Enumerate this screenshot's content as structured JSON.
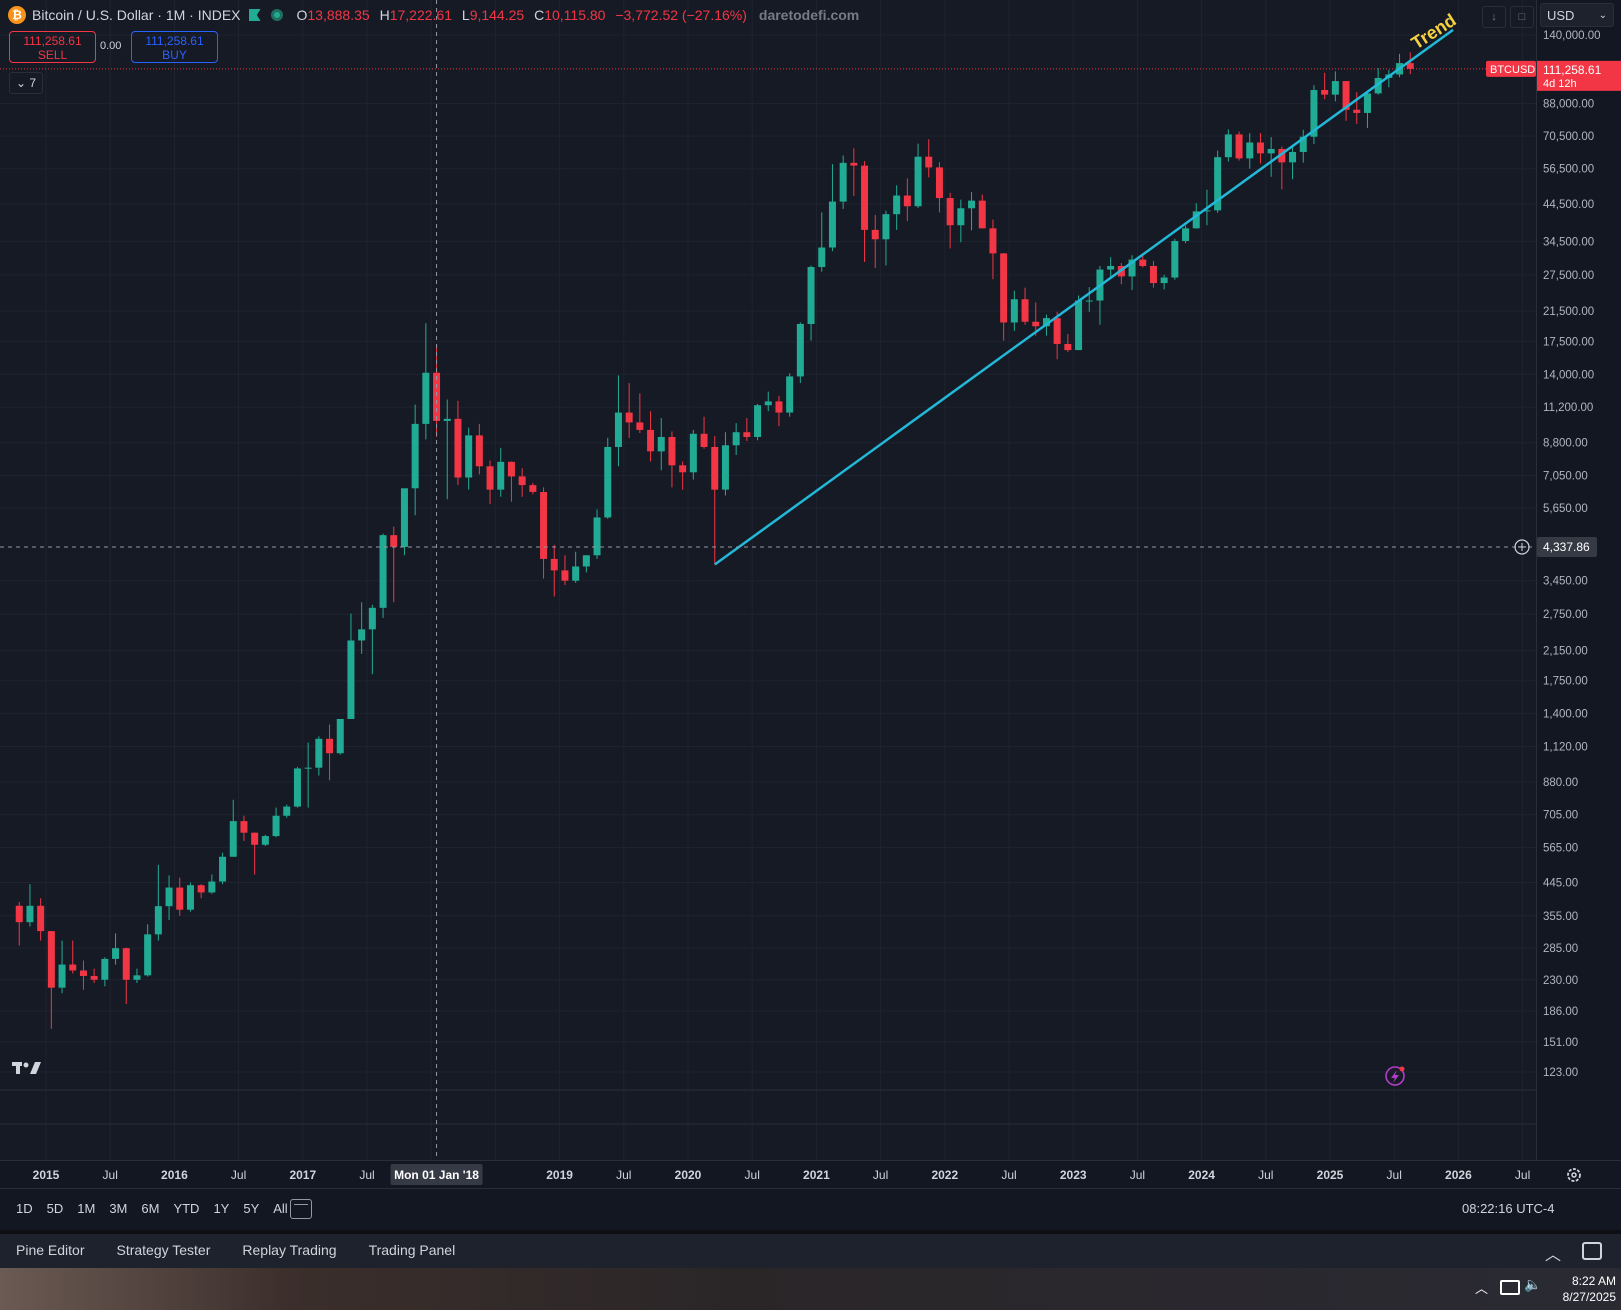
{
  "header": {
    "symbol": "Bitcoin / U.S. Dollar · 1M · INDEX",
    "ohlc": {
      "o_label": "O",
      "o": "13,888.35",
      "h_label": "H",
      "h": "17,222.61",
      "l_label": "L",
      "l": "9,144.25",
      "c_label": "C",
      "c": "10,115.80",
      "change": "−3,772.52 (−27.16%)"
    },
    "watermark": "daretodefi.com",
    "sell": {
      "price": "111,258.61",
      "label": "SELL"
    },
    "buy": {
      "price": "111,258.61",
      "label": "BUY"
    },
    "spread": "0.00",
    "indicators_collapsed": "⌄ 7",
    "currency": "USD"
  },
  "price_scale": {
    "labels": [
      "140,000.00",
      "88,000.00",
      "70,500.00",
      "56,500.00",
      "44,500.00",
      "34,500.00",
      "27,500.00",
      "21,500.00",
      "17,500.00",
      "14,000.00",
      "11,200.00",
      "8,800.00",
      "7,050.00",
      "5,650.00",
      "3,450.00",
      "2,750.00",
      "2,150.00",
      "1,750.00",
      "1,400.00",
      "1,120.00",
      "880.00",
      "705.00",
      "565.00",
      "445.00",
      "355.00",
      "285.00",
      "230.00",
      "186.00",
      "151.00",
      "123.00"
    ],
    "current_tag": {
      "symbol": "BTCUSD",
      "price": "111,258.61",
      "countdown": "4d 12h"
    },
    "crosshair_price": "4,337.86"
  },
  "time_scale": {
    "labels": [
      {
        "text": "2015",
        "bold": true
      },
      {
        "text": "Jul",
        "bold": false
      },
      {
        "text": "2016",
        "bold": true
      },
      {
        "text": "Jul",
        "bold": false
      },
      {
        "text": "2017",
        "bold": true
      },
      {
        "text": "Jul",
        "bold": false
      },
      {
        "text": "Jul",
        "bold": false
      },
      {
        "text": "2019",
        "bold": true
      },
      {
        "text": "Jul",
        "bold": false
      },
      {
        "text": "2020",
        "bold": true
      },
      {
        "text": "Jul",
        "bold": false
      },
      {
        "text": "2021",
        "bold": true
      },
      {
        "text": "Jul",
        "bold": false
      },
      {
        "text": "2022",
        "bold": true
      },
      {
        "text": "Jul",
        "bold": false
      },
      {
        "text": "2023",
        "bold": true
      },
      {
        "text": "Jul",
        "bold": false
      },
      {
        "text": "2024",
        "bold": true
      },
      {
        "text": "Jul",
        "bold": false
      },
      {
        "text": "2025",
        "bold": true
      },
      {
        "text": "Jul",
        "bold": false
      },
      {
        "text": "2026",
        "bold": true
      },
      {
        "text": "Jul",
        "bold": false
      }
    ],
    "crosshair_date": "Mon 01 Jan '18"
  },
  "drawing": {
    "label": "Trend",
    "color": "#22b8d8"
  },
  "range_bar": {
    "ranges": [
      "1D",
      "5D",
      "1M",
      "3M",
      "6M",
      "YTD",
      "1Y",
      "5Y",
      "All"
    ],
    "clock": "08:22:16 UTC-4"
  },
  "bottom_panel": {
    "tabs": [
      "Pine Editor",
      "Strategy Tester",
      "Replay Trading",
      "Trading Panel"
    ]
  },
  "taskbar": {
    "time": "8:22 AM",
    "date": "8/27/2025"
  },
  "colors": {
    "up": "#22ab94",
    "down": "#f23645",
    "background": "#161a25",
    "grid": "#1f2330"
  },
  "chart_data": {
    "type": "candlestick",
    "title": "Bitcoin / U.S. Dollar · 1M · INDEX",
    "y_scale": "log",
    "ylim": [
      110,
      160000
    ],
    "xlim": [
      "2014-10",
      "2026-09"
    ],
    "candles": [
      [
        "2014-10",
        380,
        390,
        290,
        340
      ],
      [
        "2014-11",
        340,
        440,
        330,
        380
      ],
      [
        "2014-12",
        380,
        400,
        300,
        320
      ],
      [
        "2015-01",
        320,
        320,
        165,
        218
      ],
      [
        "2015-02",
        218,
        300,
        210,
        255
      ],
      [
        "2015-03",
        255,
        300,
        240,
        245
      ],
      [
        "2015-04",
        245,
        262,
        215,
        236
      ],
      [
        "2015-05",
        236,
        248,
        225,
        230
      ],
      [
        "2015-06",
        230,
        268,
        220,
        265
      ],
      [
        "2015-07",
        265,
        315,
        255,
        285
      ],
      [
        "2015-08",
        285,
        286,
        195,
        230
      ],
      [
        "2015-09",
        230,
        248,
        225,
        237
      ],
      [
        "2015-10",
        237,
        335,
        235,
        313
      ],
      [
        "2015-11",
        313,
        502,
        300,
        379
      ],
      [
        "2015-12",
        379,
        467,
        345,
        430
      ],
      [
        "2016-01",
        430,
        460,
        355,
        370
      ],
      [
        "2016-02",
        370,
        445,
        365,
        437
      ],
      [
        "2016-03",
        437,
        440,
        400,
        416
      ],
      [
        "2016-04",
        416,
        470,
        412,
        448
      ],
      [
        "2016-05",
        448,
        545,
        440,
        530
      ],
      [
        "2016-06",
        530,
        780,
        530,
        675
      ],
      [
        "2016-07",
        675,
        700,
        590,
        624
      ],
      [
        "2016-08",
        624,
        625,
        470,
        575
      ],
      [
        "2016-09",
        575,
        615,
        570,
        610
      ],
      [
        "2016-10",
        610,
        740,
        605,
        700
      ],
      [
        "2016-11",
        700,
        755,
        690,
        745
      ],
      [
        "2016-12",
        745,
        975,
        740,
        965
      ],
      [
        "2017-01",
        965,
        1150,
        740,
        970
      ],
      [
        "2017-02",
        970,
        1200,
        920,
        1180
      ],
      [
        "2017-03",
        1180,
        1300,
        890,
        1070
      ],
      [
        "2017-04",
        1070,
        1350,
        1060,
        1350
      ],
      [
        "2017-05",
        1350,
        2760,
        1350,
        2300
      ],
      [
        "2017-06",
        2300,
        2980,
        2100,
        2480
      ],
      [
        "2017-07",
        2480,
        2930,
        1830,
        2870
      ],
      [
        "2017-08",
        2870,
        4750,
        2680,
        4700
      ],
      [
        "2017-09",
        4700,
        4980,
        2980,
        4340
      ],
      [
        "2017-10",
        4340,
        6450,
        4100,
        6460
      ],
      [
        "2017-11",
        6460,
        11400,
        5380,
        10000
      ],
      [
        "2017-12",
        10000,
        19800,
        9000,
        14150
      ],
      [
        "2018-01",
        14150,
        17200,
        9150,
        10200
      ],
      [
        "2018-02",
        10200,
        11800,
        6000,
        10350
      ],
      [
        "2018-03",
        10350,
        11700,
        6600,
        6950
      ],
      [
        "2018-04",
        6950,
        9750,
        6400,
        9250
      ],
      [
        "2018-05",
        9250,
        10000,
        7100,
        7500
      ],
      [
        "2018-06",
        7500,
        7800,
        5800,
        6400
      ],
      [
        "2018-07",
        6400,
        8500,
        6100,
        7730
      ],
      [
        "2018-08",
        7730,
        7750,
        5900,
        7000
      ],
      [
        "2018-09",
        7000,
        7400,
        6100,
        6600
      ],
      [
        "2018-10",
        6600,
        6700,
        6200,
        6300
      ],
      [
        "2018-11",
        6300,
        6500,
        3500,
        4000
      ],
      [
        "2018-12",
        4000,
        4400,
        3100,
        3700
      ],
      [
        "2019-01",
        3700,
        4100,
        3350,
        3450
      ],
      [
        "2019-02",
        3450,
        4200,
        3400,
        3800
      ],
      [
        "2019-03",
        3800,
        4100,
        3650,
        4100
      ],
      [
        "2019-04",
        4100,
        5600,
        4000,
        5300
      ],
      [
        "2019-05",
        5300,
        9100,
        5250,
        8550
      ],
      [
        "2019-06",
        8550,
        13900,
        7500,
        10800
      ],
      [
        "2019-07",
        10800,
        13200,
        9100,
        10100
      ],
      [
        "2019-08",
        10100,
        12300,
        9400,
        9600
      ],
      [
        "2019-09",
        9600,
        10900,
        7750,
        8300
      ],
      [
        "2019-10",
        8300,
        10400,
        7300,
        9150
      ],
      [
        "2019-11",
        9150,
        9500,
        6500,
        7550
      ],
      [
        "2019-12",
        7550,
        7750,
        6400,
        7200
      ],
      [
        "2020-01",
        7200,
        9600,
        6850,
        9350
      ],
      [
        "2020-02",
        9350,
        10500,
        8450,
        8550
      ],
      [
        "2020-03",
        8550,
        9200,
        3850,
        6400
      ],
      [
        "2020-04",
        6400,
        9450,
        6150,
        8650
      ],
      [
        "2020-05",
        8650,
        10050,
        8100,
        9450
      ],
      [
        "2020-06",
        9450,
        10400,
        8900,
        9150
      ],
      [
        "2020-07",
        9150,
        11450,
        8950,
        11350
      ],
      [
        "2020-08",
        11350,
        12450,
        10900,
        11650
      ],
      [
        "2020-09",
        11650,
        12100,
        9850,
        10800
      ],
      [
        "2020-10",
        10800,
        14100,
        10500,
        13800
      ],
      [
        "2020-11",
        13800,
        19900,
        13200,
        19700
      ],
      [
        "2020-12",
        19700,
        29300,
        17600,
        29000
      ],
      [
        "2021-01",
        29000,
        42000,
        28100,
        33100
      ],
      [
        "2021-02",
        33100,
        58300,
        32300,
        45200
      ],
      [
        "2021-03",
        45200,
        61800,
        43000,
        58800
      ],
      [
        "2021-04",
        58800,
        64900,
        47000,
        57700
      ],
      [
        "2021-05",
        57700,
        59500,
        30000,
        37300
      ],
      [
        "2021-06",
        37300,
        41300,
        28800,
        35000
      ],
      [
        "2021-07",
        35000,
        42500,
        29300,
        41500
      ],
      [
        "2021-08",
        41500,
        50500,
        37300,
        47100
      ],
      [
        "2021-09",
        47100,
        52900,
        39600,
        43800
      ],
      [
        "2021-10",
        43800,
        67000,
        43300,
        61300
      ],
      [
        "2021-11",
        61300,
        69000,
        53300,
        57000
      ],
      [
        "2021-12",
        57000,
        59100,
        42000,
        46300
      ],
      [
        "2022-01",
        46300,
        48000,
        32900,
        38500
      ],
      [
        "2022-02",
        38500,
        45800,
        34300,
        43200
      ],
      [
        "2022-03",
        43200,
        48200,
        37200,
        45500
      ],
      [
        "2022-04",
        45500,
        47400,
        37700,
        37700
      ],
      [
        "2022-05",
        37700,
        40000,
        26700,
        31800
      ],
      [
        "2022-06",
        31800,
        31900,
        17600,
        19900
      ],
      [
        "2022-07",
        19900,
        24700,
        18800,
        23300
      ],
      [
        "2022-08",
        23300,
        25200,
        19600,
        20000
      ],
      [
        "2022-09",
        20000,
        22800,
        18200,
        19400
      ],
      [
        "2022-10",
        19400,
        21000,
        18200,
        20500
      ],
      [
        "2022-11",
        20500,
        21400,
        15500,
        17200
      ],
      [
        "2022-12",
        17200,
        18400,
        16300,
        16500
      ],
      [
        "2023-01",
        16500,
        23900,
        16500,
        23100
      ],
      [
        "2023-02",
        23100,
        25300,
        21400,
        23100
      ],
      [
        "2023-03",
        23100,
        29200,
        19600,
        28500
      ],
      [
        "2023-04",
        28500,
        31000,
        27000,
        29200
      ],
      [
        "2023-05",
        29200,
        29800,
        25800,
        27200
      ],
      [
        "2023-06",
        27200,
        31400,
        24800,
        30500
      ],
      [
        "2023-07",
        30500,
        31800,
        28900,
        29200
      ],
      [
        "2023-08",
        29200,
        30200,
        25200,
        26000
      ],
      [
        "2023-09",
        26000,
        27500,
        24900,
        27000
      ],
      [
        "2023-10",
        27000,
        35100,
        26600,
        34600
      ],
      [
        "2023-11",
        34600,
        38400,
        34100,
        37700
      ],
      [
        "2023-12",
        37700,
        44700,
        37600,
        42300
      ],
      [
        "2024-01",
        42300,
        49000,
        38500,
        42600
      ],
      [
        "2024-02",
        42600,
        63900,
        41900,
        61100
      ],
      [
        "2024-03",
        61100,
        73800,
        59300,
        71300
      ],
      [
        "2024-04",
        71300,
        72700,
        59700,
        60600
      ],
      [
        "2024-05",
        60600,
        71900,
        56500,
        67500
      ],
      [
        "2024-06",
        67500,
        72000,
        58500,
        62700
      ],
      [
        "2024-07",
        62700,
        70000,
        53500,
        64600
      ],
      [
        "2024-08",
        64600,
        65600,
        49100,
        59000
      ],
      [
        "2024-09",
        59000,
        66500,
        52600,
        63300
      ],
      [
        "2024-10",
        63300,
        73600,
        58900,
        70200
      ],
      [
        "2024-11",
        70200,
        99600,
        66800,
        96400
      ],
      [
        "2024-12",
        96400,
        108300,
        90500,
        93400
      ],
      [
        "2025-01",
        93400,
        109400,
        89200,
        102400
      ],
      [
        "2025-02",
        102400,
        102500,
        78200,
        84300
      ],
      [
        "2025-03",
        84300,
        95000,
        76600,
        82500
      ],
      [
        "2025-04",
        82500,
        95700,
        74500,
        94200
      ],
      [
        "2025-05",
        94200,
        111900,
        93400,
        104600
      ],
      [
        "2025-06",
        104600,
        110400,
        98200,
        107100
      ],
      [
        "2025-07",
        107100,
        123200,
        105100,
        115700
      ],
      [
        "2025-08",
        115700,
        124500,
        107400,
        111258.61
      ]
    ]
  }
}
